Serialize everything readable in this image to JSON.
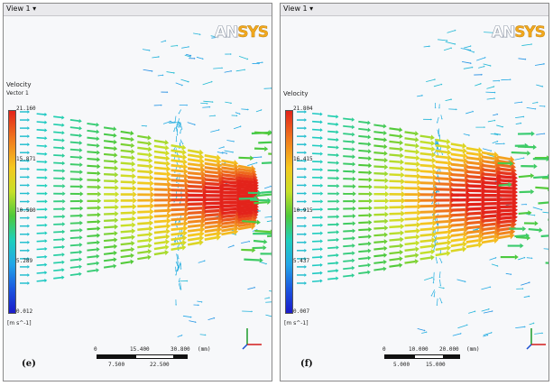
{
  "panels": [
    {
      "id": "e",
      "view_label": "View 1 ▾",
      "logo": {
        "left": "AN",
        "right": "SYS"
      },
      "legend": {
        "title": "Velocity",
        "subtitle": "Vector 1",
        "unit": "[m s^-1]",
        "ticks": [
          "21.160",
          "15.871",
          "10.580",
          "5.289",
          "0.012"
        ]
      },
      "scale": {
        "top_ticks": [
          "0",
          "15.400",
          "30.800"
        ],
        "bottom_ticks": [
          "7.500",
          "22.500"
        ],
        "unit": "(mm)"
      },
      "label": "(e)",
      "colors": {
        "peak": "#e8271c",
        "accent": "#f5a31f"
      }
    },
    {
      "id": "f",
      "view_label": "View 1 ▾",
      "logo": {
        "left": "AN",
        "right": "SYS"
      },
      "legend": {
        "title": "Velocity",
        "subtitle": "",
        "unit": "[m s^-1]",
        "ticks": [
          "21.804",
          "16.415",
          "10.915",
          "5.437",
          "0.007"
        ]
      },
      "scale": {
        "top_ticks": [
          "0",
          "10.000",
          "20.000"
        ],
        "bottom_ticks": [
          "5.000",
          "15.000"
        ],
        "unit": "(mm)"
      },
      "label": "(f)",
      "colors": {
        "peak": "#e8271c",
        "accent": "#f5a31f"
      }
    }
  ]
}
